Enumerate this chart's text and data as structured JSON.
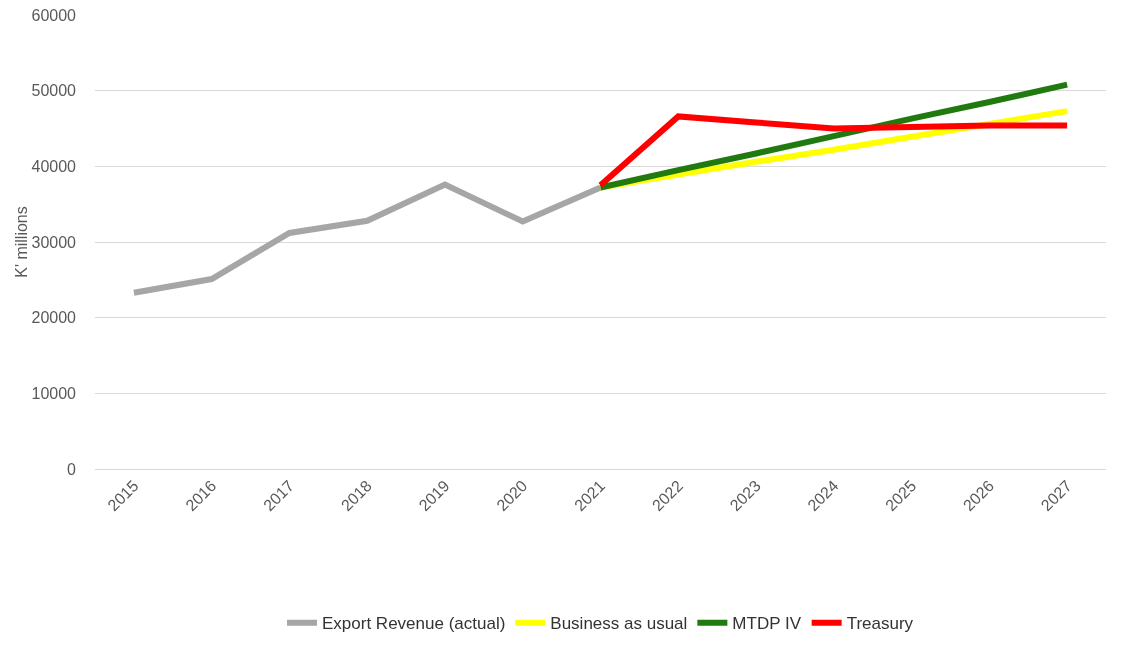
{
  "chart_data": {
    "type": "line",
    "ylabel": "K' millions",
    "categories": [
      "2015",
      "2016",
      "2017",
      "2018",
      "2019",
      "2020",
      "2021",
      "2022",
      "2023",
      "2024",
      "2025",
      "2026",
      "2027"
    ],
    "series": [
      {
        "name": "Export Revenue (actual)",
        "color": "#a6a6a6",
        "values": [
          23300,
          25100,
          31200,
          32800,
          37600,
          32700,
          37200,
          null,
          null,
          null,
          null,
          null,
          null
        ]
      },
      {
        "name": "Business as usual",
        "color": "#ffff00",
        "values": [
          null,
          null,
          null,
          null,
          null,
          null,
          37200,
          38900,
          40600,
          42200,
          43900,
          45600,
          47300
        ]
      },
      {
        "name": "MTDP IV",
        "color": "#217a0f",
        "values": [
          null,
          null,
          null,
          null,
          null,
          null,
          37200,
          39500,
          41700,
          44000,
          46300,
          48500,
          50800
        ]
      },
      {
        "name": "Treasury",
        "color": "#ff0000",
        "values": [
          null,
          null,
          null,
          null,
          null,
          null,
          37500,
          46600,
          45800,
          45000,
          45200,
          45400,
          45400
        ]
      }
    ],
    "ylim": [
      0,
      60000
    ],
    "yticks": [
      0,
      10000,
      20000,
      30000,
      40000,
      50000,
      60000
    ],
    "grid": "y",
    "legend": "bottom",
    "marker": "none",
    "line_style": "solid"
  }
}
